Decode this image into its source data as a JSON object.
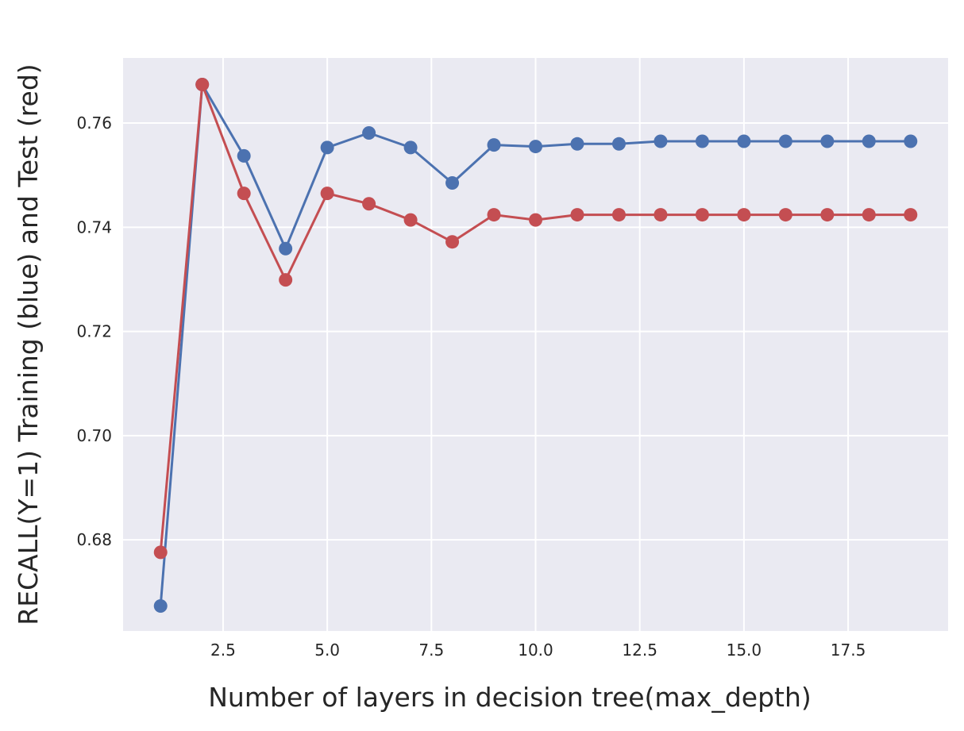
{
  "chart_data": {
    "type": "line",
    "xlabel": "Number of layers in decision tree(max_depth)",
    "ylabel": "RECALL(Y=1) Training (blue) and Test (red)",
    "xlim": [
      0.1,
      19.9
    ],
    "ylim": [
      0.6625,
      0.7725
    ],
    "xticks": [
      2.5,
      5.0,
      7.5,
      10.0,
      12.5,
      15.0,
      17.5
    ],
    "xtick_labels": [
      "2.5",
      "5.0",
      "7.5",
      "10.0",
      "12.5",
      "15.0",
      "17.5"
    ],
    "yticks": [
      0.68,
      0.7,
      0.72,
      0.74,
      0.76
    ],
    "ytick_labels": [
      "0.68",
      "0.70",
      "0.72",
      "0.74",
      "0.76"
    ],
    "grid": true,
    "x": [
      1,
      2,
      3,
      4,
      5,
      6,
      7,
      8,
      9,
      10,
      11,
      12,
      13,
      14,
      15,
      16,
      17,
      18,
      19
    ],
    "series": [
      {
        "color": "#4c72b0",
        "values": [
          0.6673,
          0.7674,
          0.7537,
          0.7359,
          0.7553,
          0.7581,
          0.7553,
          0.7485,
          0.7558,
          0.7555,
          0.756,
          0.756,
          0.7565,
          0.7565,
          0.7565,
          0.7565,
          0.7565,
          0.7565,
          0.7565
        ]
      },
      {
        "color": "#c44e52",
        "values": [
          0.6776,
          0.7674,
          0.7465,
          0.7299,
          0.7465,
          0.7445,
          0.7414,
          0.7372,
          0.7424,
          0.7414,
          0.7424,
          0.7424,
          0.7424,
          0.7424,
          0.7424,
          0.7424,
          0.7424,
          0.7424,
          0.7424
        ]
      }
    ],
    "colors": {
      "plot_background": "#eaeaf2",
      "grid": "#ffffff"
    }
  }
}
